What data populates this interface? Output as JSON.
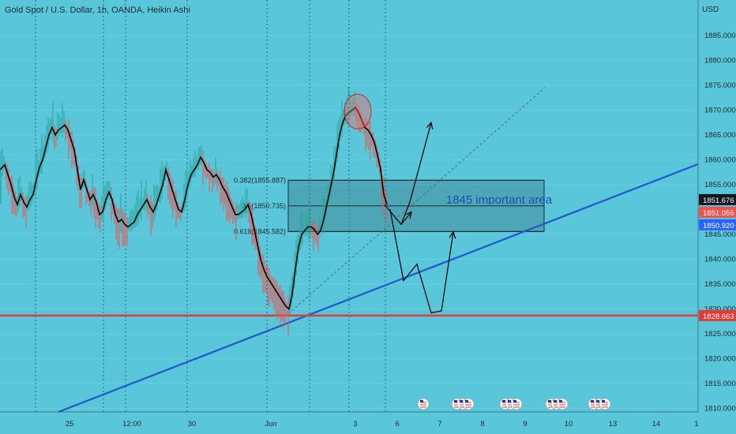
{
  "header": {
    "title": "Gold Spot / U.S. Dollar, 1h, OANDA, Heikin Ashi",
    "currency": "USD"
  },
  "chart_data": {
    "type": "candlestick",
    "symbol": "XAUUSD",
    "ylim": [
      1807,
      1894
    ],
    "y_ticks": [
      "1885.000",
      "1880.000",
      "1875.000",
      "1870.000",
      "1865.000",
      "1860.000",
      "1855.000",
      "1845.000",
      "1840.000",
      "1835.000",
      "1830.000",
      "1825.000",
      "1820.000",
      "1815.000",
      "1810.000"
    ],
    "x_ticks": [
      "25",
      "12:00",
      "30",
      "Jun",
      "3",
      "6",
      "7",
      "8",
      "9",
      "10",
      "13",
      "14",
      "1"
    ],
    "price_labels": [
      {
        "text": "1851.676",
        "value": 1851.676,
        "color": "#131722"
      },
      {
        "text": "1851.056",
        "value": 1851.056,
        "color": "#ef5350"
      },
      {
        "text": "1850.920",
        "value": 1850.92,
        "color": "#2962ff"
      },
      {
        "text": "1828.663",
        "value": 1828.663,
        "color": "#e53935"
      }
    ],
    "support_level": 1828.663,
    "fib_levels": [
      {
        "label": "0.382(1855.887)",
        "value": 1855.887
      },
      {
        "label": "0.5(1850.735)",
        "value": 1850.735
      },
      {
        "label": "0.618(1845.582)",
        "value": 1845.582
      }
    ],
    "annotation": "1845 important area",
    "colors": {
      "up": "#26a69a",
      "down": "#ef5350",
      "trendline": "#2157c9",
      "support": "#e53935",
      "ma": "#000000",
      "zone": "#3f7f8a"
    },
    "ma_path": [
      [
        0,
        1858
      ],
      [
        6,
        1859
      ],
      [
        10,
        1857
      ],
      [
        14,
        1855
      ],
      [
        18,
        1852.5
      ],
      [
        22,
        1851
      ],
      [
        26,
        1853
      ],
      [
        30,
        1851.5
      ],
      [
        34,
        1850.5
      ],
      [
        38,
        1852
      ],
      [
        42,
        1853
      ],
      [
        46,
        1856
      ],
      [
        50,
        1858.5
      ],
      [
        54,
        1860
      ],
      [
        58,
        1862.5
      ],
      [
        62,
        1865
      ],
      [
        66,
        1866.5
      ],
      [
        70,
        1865
      ],
      [
        74,
        1866
      ],
      [
        78,
        1866.5
      ],
      [
        82,
        1867
      ],
      [
        86,
        1866
      ],
      [
        90,
        1864
      ],
      [
        94,
        1862
      ],
      [
        98,
        1858
      ],
      [
        102,
        1854
      ],
      [
        106,
        1856
      ],
      [
        110,
        1854
      ],
      [
        114,
        1852
      ],
      [
        118,
        1853
      ],
      [
        122,
        1851.5
      ],
      [
        126,
        1849
      ],
      [
        130,
        1849.5
      ],
      [
        134,
        1852
      ],
      [
        138,
        1853.5
      ],
      [
        142,
        1852
      ],
      [
        146,
        1849
      ],
      [
        150,
        1847.5
      ],
      [
        154,
        1848
      ],
      [
        158,
        1847
      ],
      [
        162,
        1846.5
      ],
      [
        166,
        1847
      ],
      [
        170,
        1847.5
      ],
      [
        174,
        1849
      ],
      [
        178,
        1850
      ],
      [
        182,
        1851
      ],
      [
        186,
        1852
      ],
      [
        190,
        1850.5
      ],
      [
        194,
        1849.5
      ],
      [
        198,
        1851
      ],
      [
        202,
        1853
      ],
      [
        206,
        1855
      ],
      [
        210,
        1858
      ],
      [
        214,
        1856
      ],
      [
        218,
        1854
      ],
      [
        222,
        1852
      ],
      [
        226,
        1850
      ],
      [
        230,
        1849.5
      ],
      [
        234,
        1852
      ],
      [
        238,
        1855
      ],
      [
        242,
        1857
      ],
      [
        246,
        1858
      ],
      [
        250,
        1859
      ],
      [
        254,
        1860.5
      ],
      [
        258,
        1859.5
      ],
      [
        262,
        1858
      ],
      [
        266,
        1857.5
      ],
      [
        270,
        1856.5
      ],
      [
        274,
        1857
      ],
      [
        278,
        1856
      ],
      [
        282,
        1854.5
      ],
      [
        286,
        1853.5
      ],
      [
        290,
        1852
      ],
      [
        294,
        1850.5
      ],
      [
        298,
        1849
      ],
      [
        302,
        1849
      ],
      [
        306,
        1849.5
      ],
      [
        310,
        1850
      ],
      [
        314,
        1851
      ],
      [
        318,
        1849
      ],
      [
        322,
        1846
      ],
      [
        326,
        1843
      ],
      [
        330,
        1840
      ],
      [
        334,
        1838
      ],
      [
        338,
        1836.5
      ],
      [
        342,
        1835.5
      ],
      [
        346,
        1834.5
      ],
      [
        350,
        1833.5
      ],
      [
        354,
        1832.5
      ],
      [
        358,
        1831.5
      ],
      [
        362,
        1830.5
      ],
      [
        366,
        1830
      ],
      [
        370,
        1833
      ],
      [
        374,
        1838
      ],
      [
        378,
        1842.5
      ],
      [
        382,
        1845
      ],
      [
        386,
        1845.8
      ],
      [
        390,
        1846.5
      ],
      [
        394,
        1846.5
      ],
      [
        398,
        1846
      ],
      [
        402,
        1845
      ],
      [
        406,
        1845.8
      ],
      [
        410,
        1848
      ],
      [
        414,
        1851
      ],
      [
        418,
        1854
      ],
      [
        422,
        1857
      ],
      [
        426,
        1861
      ],
      [
        430,
        1865
      ],
      [
        434,
        1867.5
      ],
      [
        438,
        1869
      ],
      [
        442,
        1869.5
      ],
      [
        446,
        1870
      ],
      [
        450,
        1870.5
      ],
      [
        454,
        1869.5
      ],
      [
        458,
        1868
      ],
      [
        462,
        1866.5
      ],
      [
        466,
        1866
      ],
      [
        470,
        1865
      ],
      [
        474,
        1863.5
      ],
      [
        478,
        1861
      ],
      [
        482,
        1858
      ],
      [
        486,
        1853
      ],
      [
        490,
        1851
      ]
    ],
    "projection_path": [
      [
        487,
        1851
      ],
      [
        508,
        1847
      ],
      [
        521,
        1849.5
      ]
    ],
    "projection_path_2": [
      [
        494,
        1850
      ],
      [
        511,
        1835.7
      ],
      [
        528,
        1839
      ],
      [
        546,
        1829.2
      ],
      [
        559,
        1829.6
      ],
      [
        574,
        1845.5
      ]
    ],
    "events_count": 5
  }
}
